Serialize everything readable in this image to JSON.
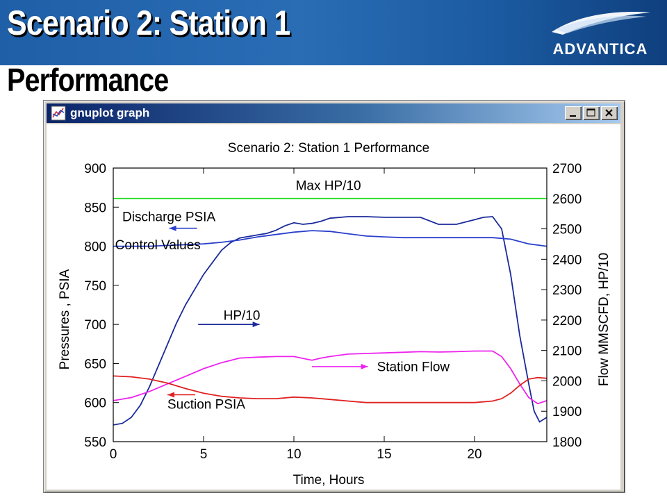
{
  "slide": {
    "title": "Scenario 2: Station 1",
    "subtitle": "Performance",
    "logo_text": "ADVANTICA"
  },
  "window": {
    "title": "gnuplot graph",
    "icon": "gnuplot-graph-icon",
    "controls": [
      "minimize-icon",
      "maximize-icon",
      "close-icon"
    ]
  },
  "colors": {
    "banner": "#1f5fa8",
    "max_hp": "#22dd22",
    "hp": "#1a2a9a",
    "discharge": "#2a3fcc",
    "station_flow": "#ee22ee",
    "suction": "#e02020"
  },
  "chart_data": {
    "type": "line",
    "title": "Scenario 2: Station 1 Performance",
    "xlabel": "Time, Hours",
    "ylabel": "Pressures , PSIA",
    "y2label": "Flow MMSCFD, HP/10",
    "xlim": [
      0,
      24
    ],
    "ylim": [
      550,
      900
    ],
    "y2lim": [
      1800,
      2700
    ],
    "xticks": [
      0,
      5,
      10,
      15,
      20
    ],
    "yticks": [
      550,
      600,
      650,
      700,
      750,
      800,
      850,
      900
    ],
    "y2ticks": [
      1800,
      1900,
      2000,
      2100,
      2200,
      2300,
      2400,
      2500,
      2600,
      2700
    ],
    "grid": false,
    "series": [
      {
        "name": "Max HP/10",
        "axis": "y2",
        "color": "#22dd22",
        "x": [
          0,
          24
        ],
        "y": [
          2600,
          2600
        ]
      },
      {
        "name": "HP/10",
        "axis": "y2",
        "color": "#1a2a9a",
        "x": [
          0,
          0.5,
          1,
          1.5,
          2,
          2.5,
          3,
          3.5,
          4,
          4.5,
          5,
          5.5,
          6,
          6.5,
          7,
          7.5,
          8,
          8.5,
          9,
          9.5,
          10,
          10.5,
          11,
          11.5,
          12,
          13,
          14,
          15,
          16,
          17,
          18,
          19,
          20,
          20.5,
          21,
          21.5,
          22,
          22.5,
          23,
          23.3,
          23.6,
          24
        ],
        "y": [
          1855,
          1860,
          1880,
          1920,
          1980,
          2050,
          2120,
          2190,
          2250,
          2300,
          2350,
          2390,
          2430,
          2455,
          2470,
          2475,
          2480,
          2485,
          2495,
          2510,
          2520,
          2515,
          2518,
          2525,
          2535,
          2540,
          2540,
          2538,
          2538,
          2538,
          2515,
          2515,
          2530,
          2538,
          2540,
          2500,
          2350,
          2150,
          1990,
          1900,
          1865,
          1880
        ]
      },
      {
        "name": "Discharge PSIA",
        "axis": "y",
        "color": "#2a3fcc",
        "x": [
          0,
          1,
          2,
          3,
          4,
          5,
          6,
          7,
          8,
          9,
          10,
          11,
          12,
          13,
          14,
          15,
          16,
          17,
          18,
          19,
          20,
          21,
          22,
          23,
          24
        ],
        "y": [
          800,
          800,
          800,
          801,
          802,
          803,
          805,
          808,
          812,
          815,
          818,
          820,
          819,
          816,
          813,
          812,
          811,
          811,
          811,
          811,
          811,
          811,
          809,
          803,
          800
        ]
      },
      {
        "name": "Station Flow",
        "axis": "y2",
        "color": "#ee22ee",
        "x": [
          0,
          1,
          2,
          3,
          4,
          5,
          6,
          7,
          8,
          9,
          10,
          11,
          11.5,
          12,
          13,
          14,
          15,
          16,
          17,
          18,
          19,
          20,
          21,
          21.5,
          22,
          22.5,
          23,
          23.5,
          24
        ],
        "y": [
          1935,
          1945,
          1965,
          1990,
          2015,
          2040,
          2060,
          2075,
          2078,
          2080,
          2080,
          2068,
          2075,
          2080,
          2088,
          2090,
          2092,
          2094,
          2096,
          2095,
          2096,
          2098,
          2098,
          2080,
          2040,
          1990,
          1945,
          1925,
          1935
        ]
      },
      {
        "name": "Suction PSIA",
        "axis": "y",
        "color": "#e02020",
        "x": [
          0,
          1,
          2,
          3,
          4,
          5,
          6,
          7,
          8,
          9,
          10,
          11,
          12,
          13,
          14,
          15,
          16,
          17,
          18,
          19,
          20,
          21,
          21.5,
          22,
          22.5,
          23,
          23.5,
          24
        ],
        "y": [
          634,
          633,
          630,
          625,
          618,
          612,
          608,
          606,
          605,
          605,
          607,
          606,
          604,
          602,
          600,
          600,
          600,
          600,
          600,
          600,
          600,
          602,
          605,
          612,
          622,
          630,
          632,
          631
        ]
      }
    ],
    "annotations": [
      {
        "text": "Max HP/10",
        "x": 10.1,
        "y": 872,
        "axis": "y"
      },
      {
        "text": "Discharge PSIA",
        "x": 0.5,
        "y": 832,
        "axis": "y",
        "arrow_to": [
          3.1,
          823
        ],
        "arrow_color": "#2a3fcc"
      },
      {
        "text": "Control Values",
        "x": 0.1,
        "y": 796,
        "axis": "y"
      },
      {
        "text": "HP/10",
        "x": 6.1,
        "y": 706,
        "axis": "y",
        "arrow_from": [
          4.7,
          700
        ],
        "arrow_to": [
          8.1,
          700
        ],
        "arrow_color": "#1a2a9a"
      },
      {
        "text": "Station Flow",
        "x": 14.6,
        "y": 640,
        "axis": "y",
        "arrow_from": [
          11.0,
          646
        ],
        "arrow_to": [
          14.1,
          646
        ],
        "arrow_color": "#ee22ee"
      },
      {
        "text": "Suction PSIA",
        "x": 3.0,
        "y": 592,
        "axis": "y",
        "arrow_to": [
          3.0,
          610
        ],
        "arrow_color": "#e02020"
      }
    ]
  }
}
